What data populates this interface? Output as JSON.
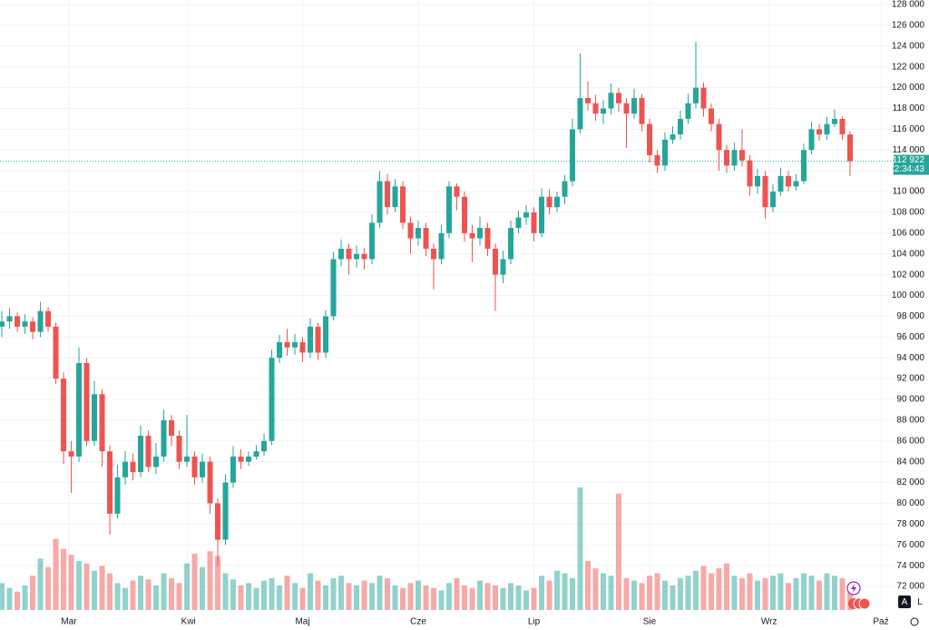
{
  "chart_data": {
    "type": "candlestick",
    "open": [
      97000,
      97500,
      98000,
      97000,
      97500,
      96500,
      98500,
      97000,
      92000,
      85000,
      84500,
      93500,
      86000,
      90500,
      85000,
      79000,
      82500,
      84000,
      83000,
      86500,
      83500,
      84500,
      88000,
      86500,
      84000,
      84500,
      82500,
      84000,
      80000,
      76500,
      82000,
      84500,
      84000,
      84500,
      85000,
      86000,
      94000,
      95500,
      95000,
      95500,
      94500,
      97000,
      94500,
      98000,
      103500,
      104500,
      103500,
      104000,
      103500,
      107000,
      111000,
      108500,
      110500,
      107000,
      105500,
      106500,
      104500,
      103500,
      106000,
      110500,
      109500,
      106000,
      105500,
      106500,
      104500,
      102000,
      103500,
      106500,
      107500,
      108000,
      106000,
      109500,
      108500,
      109500,
      111000,
      116000,
      119000,
      118500,
      117500,
      118000,
      119500,
      118500,
      117500,
      119000,
      116500,
      113500,
      112500,
      115000,
      115500,
      117000,
      118500,
      120000,
      118000,
      116500,
      114000,
      112500,
      114000,
      113000,
      110500,
      111500,
      108500,
      110000,
      111500,
      110500,
      111000,
      114000,
      116000,
      115500,
      116500,
      117000,
      115500
    ],
    "high": [
      98500,
      98800,
      98400,
      98200,
      97900,
      99400,
      98900,
      97400,
      92600,
      86000,
      95000,
      94000,
      91800,
      91000,
      85600,
      83700,
      85000,
      84800,
      87500,
      87000,
      85800,
      89000,
      88500,
      87000,
      88500,
      85000,
      84800,
      84500,
      80500,
      82800,
      85500,
      85200,
      85000,
      85600,
      86700,
      94800,
      96200,
      96800,
      96300,
      96000,
      97800,
      97400,
      98600,
      104200,
      105400,
      105000,
      104800,
      104600,
      107800,
      112000,
      111700,
      111200,
      111000,
      107600,
      107200,
      107000,
      105000,
      106800,
      111000,
      110800,
      110000,
      106800,
      107600,
      107000,
      105000,
      104300,
      107200,
      108200,
      108700,
      108500,
      110300,
      110200,
      110000,
      111600,
      117000,
      123300,
      120600,
      119300,
      118800,
      120400,
      120000,
      119000,
      119900,
      119400,
      117000,
      114000,
      115700,
      116300,
      117800,
      119400,
      124400,
      120500,
      118500,
      117000,
      114500,
      114700,
      116000,
      113500,
      112200,
      112000,
      110700,
      112300,
      112000,
      111700,
      114600,
      116700,
      116500,
      117200,
      117900,
      117200,
      115800
    ],
    "low": [
      96000,
      96800,
      96500,
      96300,
      95800,
      96000,
      96500,
      91500,
      83800,
      81000,
      84000,
      85500,
      85500,
      83500,
      77000,
      78500,
      81800,
      82200,
      82500,
      83000,
      82800,
      84000,
      85500,
      83300,
      83500,
      81800,
      82000,
      79000,
      74000,
      76000,
      81500,
      83300,
      83600,
      84200,
      84600,
      85600,
      93500,
      94200,
      94300,
      93600,
      94000,
      93800,
      94000,
      97600,
      102800,
      102000,
      102700,
      102500,
      103000,
      106500,
      107800,
      108000,
      106400,
      104000,
      104800,
      103800,
      100600,
      103000,
      105500,
      108200,
      105200,
      103200,
      104800,
      103800,
      98500,
      101200,
      103000,
      106000,
      106800,
      105200,
      105600,
      107800,
      108000,
      108800,
      110500,
      115600,
      117800,
      116800,
      116500,
      117400,
      117700,
      114200,
      117000,
      115800,
      112800,
      111800,
      112000,
      114600,
      115000,
      116500,
      118000,
      117200,
      115800,
      112000,
      111800,
      112000,
      112400,
      109600,
      109800,
      107400,
      108000,
      109600,
      110000,
      110100,
      110700,
      113600,
      114900,
      115000,
      116200,
      115000,
      111500
    ],
    "close": [
      97500,
      98000,
      97000,
      97500,
      96500,
      98500,
      97000,
      92000,
      85000,
      84500,
      93500,
      86000,
      90500,
      85000,
      79000,
      82500,
      84000,
      83000,
      86500,
      83500,
      84500,
      88000,
      86500,
      84000,
      84500,
      82500,
      84000,
      80000,
      76500,
      82000,
      84500,
      84000,
      84500,
      85000,
      86000,
      94000,
      95500,
      95000,
      95500,
      94500,
      97000,
      94500,
      98000,
      103500,
      104500,
      103500,
      104000,
      103500,
      107000,
      111000,
      108500,
      110500,
      107000,
      105500,
      106500,
      104500,
      103500,
      106000,
      110500,
      109500,
      106000,
      105500,
      106500,
      104500,
      102000,
      103500,
      106500,
      107500,
      108000,
      106000,
      109500,
      108500,
      109500,
      111000,
      116000,
      119000,
      118500,
      117500,
      118000,
      119500,
      118500,
      117500,
      119000,
      116500,
      113500,
      112500,
      115000,
      115500,
      117000,
      118500,
      120000,
      118000,
      116500,
      114000,
      112500,
      114000,
      113000,
      110500,
      111500,
      108500,
      110000,
      111500,
      110500,
      111000,
      114000,
      116000,
      115500,
      116500,
      117000,
      115500,
      112922
    ],
    "volume": [
      22,
      18,
      15,
      20,
      28,
      42,
      35,
      58,
      50,
      45,
      40,
      38,
      32,
      36,
      30,
      22,
      18,
      24,
      28,
      25,
      20,
      30,
      26,
      22,
      38,
      46,
      35,
      48,
      44,
      30,
      25,
      20,
      22,
      18,
      24,
      26,
      20,
      28,
      22,
      18,
      30,
      24,
      20,
      26,
      28,
      22,
      20,
      24,
      22,
      28,
      26,
      20,
      18,
      22,
      24,
      20,
      18,
      16,
      22,
      26,
      20,
      18,
      24,
      22,
      20,
      18,
      22,
      20,
      16,
      18,
      28,
      24,
      32,
      30,
      26,
      100,
      40,
      34,
      30,
      28,
      95,
      26,
      24,
      22,
      28,
      30,
      24,
      20,
      26,
      28,
      32,
      36,
      30,
      34,
      38,
      28,
      26,
      30,
      24,
      26,
      28,
      30,
      22,
      26,
      30,
      28,
      24,
      30,
      28,
      26,
      20
    ],
    "up_color": "#26a69a",
    "down_color": "#ef5350",
    "xlim": [
      -0.24,
      115.65
    ],
    "xticks": [
      {
        "value": 8.7,
        "label": "Mar"
      },
      {
        "value": 24.2,
        "label": "Kwi"
      },
      {
        "value": 39,
        "label": "Maj"
      },
      {
        "value": 54,
        "label": "Cze"
      },
      {
        "value": 69,
        "label": "Lip"
      },
      {
        "value": 84,
        "label": "Sie"
      },
      {
        "value": 99.5,
        "label": "Wrz"
      },
      {
        "value": 114,
        "label": "Paź"
      }
    ],
    "ylim": [
      69730,
      128437
    ],
    "yticks": [
      {
        "value": 72000,
        "label": "72 000"
      },
      {
        "value": 74000,
        "label": "74 000"
      },
      {
        "value": 76000,
        "label": "76 000"
      },
      {
        "value": 78000,
        "label": "78 000"
      },
      {
        "value": 80000,
        "label": "80 000"
      },
      {
        "value": 82000,
        "label": "82 000"
      },
      {
        "value": 84000,
        "label": "84 000"
      },
      {
        "value": 86000,
        "label": "86 000"
      },
      {
        "value": 88000,
        "label": "88 000"
      },
      {
        "value": 90000,
        "label": "90 000"
      },
      {
        "value": 92000,
        "label": "92 000"
      },
      {
        "value": 94000,
        "label": "94 000"
      },
      {
        "value": 96000,
        "label": "96 000"
      },
      {
        "value": 98000,
        "label": "98 000"
      },
      {
        "value": 100000,
        "label": "100 000"
      },
      {
        "value": 102000,
        "label": "102 000"
      },
      {
        "value": 104000,
        "label": "104 000"
      },
      {
        "value": 106000,
        "label": "106 000"
      },
      {
        "value": 108000,
        "label": "108 000"
      },
      {
        "value": 110000,
        "label": "110 000"
      },
      {
        "value": 112000,
        "label": "112 000"
      },
      {
        "value": 114000,
        "label": "114 000"
      },
      {
        "value": 116000,
        "label": "116 000"
      },
      {
        "value": 118000,
        "label": "118 000"
      },
      {
        "value": 120000,
        "label": "120 000"
      },
      {
        "value": 122000,
        "label": "122 000"
      },
      {
        "value": 124000,
        "label": "124 000"
      },
      {
        "value": 126000,
        "label": "126 000"
      },
      {
        "value": 128000,
        "label": "128 000"
      }
    ],
    "grid": true,
    "last_price_label": "112 922",
    "countdown": "12:34:43"
  },
  "ui": {
    "auto_button": "A",
    "log_button": "L"
  }
}
